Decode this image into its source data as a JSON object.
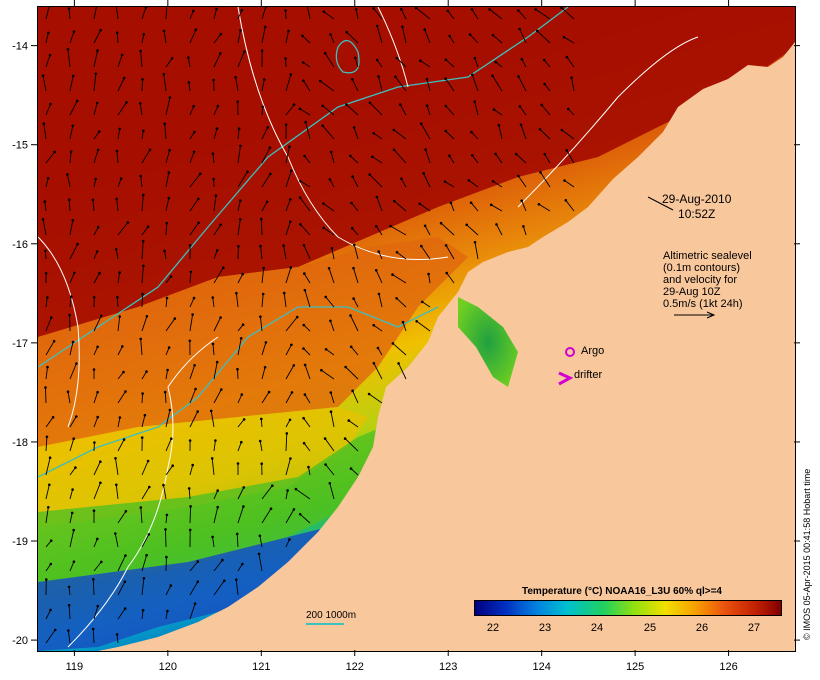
{
  "map": {
    "date": "29-Aug-2010",
    "time": "10:52Z",
    "note_lines": [
      "Altimetric sealevel",
      "(0.1m contours)",
      "and velocity for",
      "29-Aug 10Z",
      "0.5m/s (1kt 24h)"
    ],
    "legend": {
      "argo": "Argo",
      "drifter": "drifter"
    },
    "depth_scale": "200  1000m",
    "colorbar_title": "Temperature (°C) NOAA16_L3U 60% ql>=4",
    "colorbar_ticks": [
      "22",
      "23",
      "24",
      "25",
      "26",
      "27"
    ],
    "credit": "© IMOS 05-Apr-2015 00:41:58 Hobart time",
    "x_ticks": [
      "119",
      "120",
      "121",
      "122",
      "123",
      "124",
      "125",
      "126"
    ],
    "y_ticks": [
      "-14",
      "-15",
      "-16",
      "-17",
      "-18",
      "-19",
      "-20"
    ],
    "lon_range": [
      118.6,
      126.7
    ],
    "lat_range": [
      -20.1,
      -13.6
    ],
    "colors": {
      "land": "#f8c79c",
      "sst_hot": "#a50f00",
      "sst_orange": "#e85a10",
      "sst_yellow": "#f0c000",
      "sst_green": "#44c020",
      "sst_cyan": "#00b8c8",
      "sst_blue": "#1030c0",
      "contour_200m": "#3cc0c0",
      "argo": "#d000d0"
    }
  }
}
